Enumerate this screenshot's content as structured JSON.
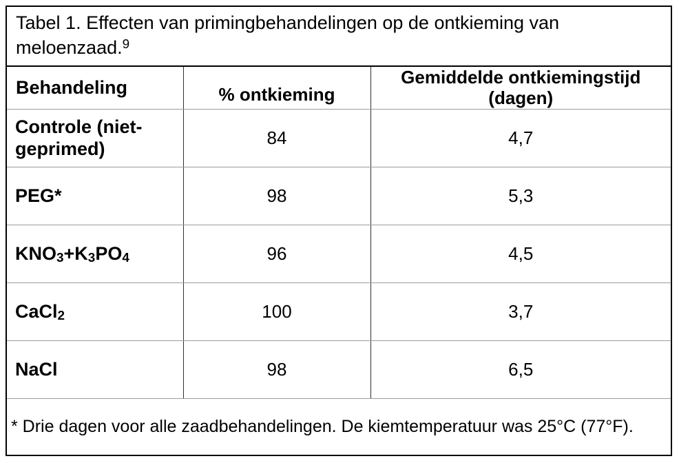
{
  "colors": {
    "background": "#ffffff",
    "text": "#000000",
    "outer_border": "#000000",
    "column_divider": "#2e2e2e",
    "row_divider": "#9b9b9b"
  },
  "title": {
    "text": "Tabel 1. Effecten van primingbehandelingen op de ontkieming van meloenzaad.",
    "superscript": "9"
  },
  "table": {
    "headers": {
      "treatment": "Behandeling",
      "germination": "% ontkieming",
      "mean_time": "Gemiddelde ontkiemingstijd (dagen)"
    },
    "rows": [
      {
        "treatment": [
          {
            "text": "Controle (niet-geprimed)"
          }
        ],
        "germination": "84",
        "mean_time": "4,7"
      },
      {
        "treatment": [
          {
            "text": "PEG*"
          }
        ],
        "germination": "98",
        "mean_time": "5,3"
      },
      {
        "treatment": [
          {
            "text": "KNO"
          },
          {
            "text": "3",
            "sub": true
          },
          {
            "text": "+K"
          },
          {
            "text": "3",
            "sub": true
          },
          {
            "text": "PO"
          },
          {
            "text": "4",
            "sub": true
          }
        ],
        "germination": "96",
        "mean_time": "4,5"
      },
      {
        "treatment": [
          {
            "text": "CaCl"
          },
          {
            "text": "2",
            "sub": true
          }
        ],
        "germination": "100",
        "mean_time": "3,7"
      },
      {
        "treatment": [
          {
            "text": "NaCl"
          }
        ],
        "germination": "98",
        "mean_time": "6,5"
      }
    ]
  },
  "footnote": "* Drie dagen voor alle zaadbehandelingen. De kiemtemperatuur was 25°C (77°F).",
  "chart_data": {
    "type": "table",
    "title": "Tabel 1. Effecten van primingbehandelingen op de ontkieming van meloenzaad.⁹",
    "columns": [
      "Behandeling",
      "% ontkieming",
      "Gemiddelde ontkiemingstijd (dagen)"
    ],
    "rows": [
      [
        "Controle (niet-geprimed)",
        84,
        "4,7"
      ],
      [
        "PEG*",
        98,
        "5,3"
      ],
      [
        "KNO₃+K₃PO₄",
        96,
        "4,5"
      ],
      [
        "CaCl₂",
        100,
        "3,7"
      ],
      [
        "NaCl",
        98,
        "6,5"
      ]
    ],
    "series": [
      {
        "name": "% ontkieming",
        "values": [
          84,
          98,
          96,
          100,
          98
        ]
      },
      {
        "name": "Gemiddelde ontkiemingstijd (dagen)",
        "values": [
          4.7,
          5.3,
          4.5,
          3.7,
          6.5
        ]
      }
    ],
    "footnote": "* Drie dagen voor alle zaadbehandelingen. De kiemtemperatuur was 25°C (77°F)."
  }
}
